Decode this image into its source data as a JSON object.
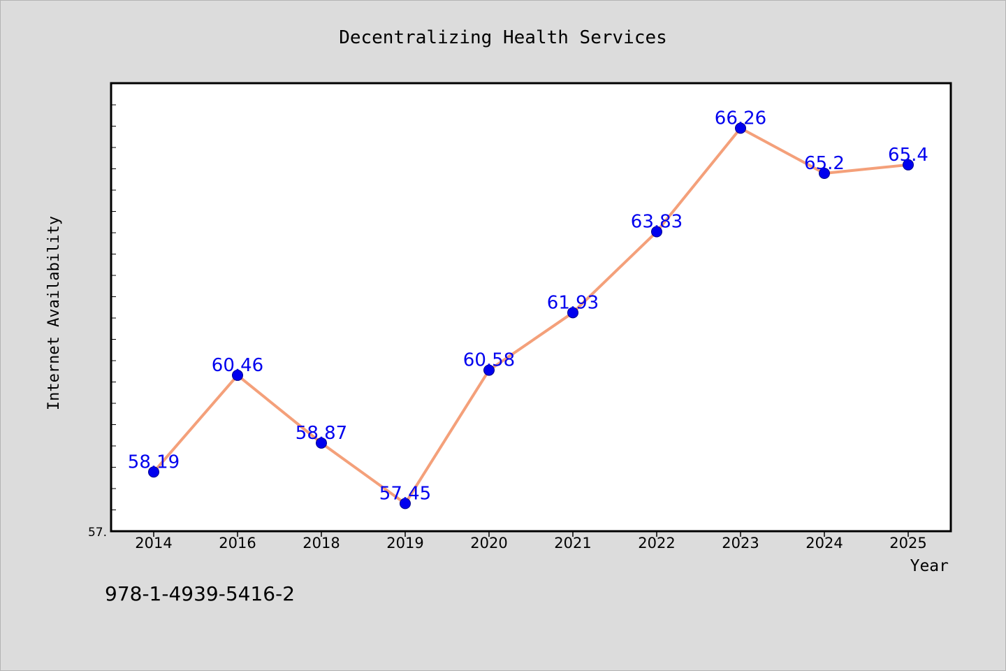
{
  "chart_data": {
    "type": "line",
    "title": "Decentralizing Health Services",
    "xlabel": "Year",
    "ylabel": "Internet Availability",
    "categories": [
      "2014",
      "2016",
      "2018",
      "2019",
      "2020",
      "2021",
      "2022",
      "2023",
      "2024",
      "2025"
    ],
    "series": [
      {
        "values": [
          58.19,
          60.46,
          58.87,
          57.45,
          60.58,
          61.93,
          63.83,
          66.26,
          65.2,
          65.4
        ],
        "data_labels": [
          "58.19",
          "60.46",
          "58.87",
          "57.45",
          "60.58",
          "61.93",
          "63.83",
          "66.26",
          "65.2",
          "65.4"
        ],
        "line_color": "#f4a07a",
        "marker_color": "#0000ee",
        "label_color": "#0000ee"
      }
    ],
    "y_tick_labels": [
      "57."
    ],
    "ylim": [
      56.8,
      67.3
    ],
    "grid": false,
    "legend": "none"
  },
  "footer": {
    "isbn": "978-1-4939-5416-2"
  },
  "colors": {
    "background": "#dcdcdc",
    "plot_area": "#ffffff",
    "axis": "#000000"
  }
}
